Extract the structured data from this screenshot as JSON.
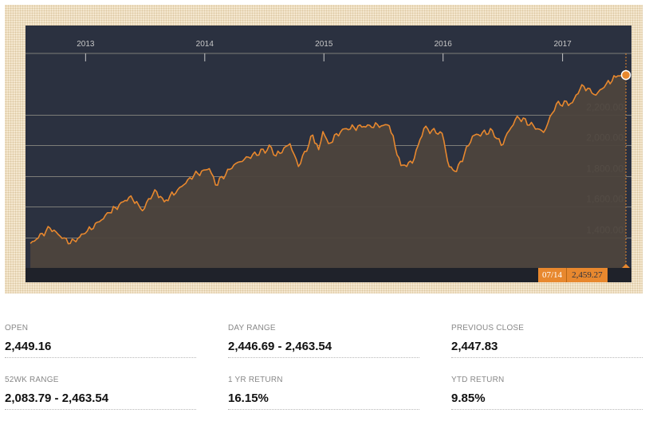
{
  "chart_data": {
    "type": "area",
    "x_ticks": [
      "2013",
      "2014",
      "2015",
      "2016",
      "2017"
    ],
    "y_ticks": [
      "1,400.00",
      "1,600.00",
      "1,800.00",
      "2,000.00",
      "2,200.00"
    ],
    "y_tick_values": [
      1400,
      1600,
      1800,
      2000,
      2200
    ],
    "ylim": [
      1200,
      2600
    ],
    "xlim": [
      "2012-07-01",
      "2017-07-31"
    ],
    "grid": true,
    "x": [
      "2012-07-16",
      "2012-09-14",
      "2012-11-15",
      "2012-12-31",
      "2013-03-15",
      "2013-05-20",
      "2013-06-24",
      "2013-08-01",
      "2013-08-30",
      "2013-10-10",
      "2013-11-29",
      "2014-01-15",
      "2014-02-03",
      "2014-03-31",
      "2014-05-15",
      "2014-07-24",
      "2014-08-07",
      "2014-09-19",
      "2014-10-15",
      "2014-11-28",
      "2014-12-16",
      "2014-12-29",
      "2015-01-15",
      "2015-02-27",
      "2015-05-21",
      "2015-07-20",
      "2015-08-25",
      "2015-09-29",
      "2015-11-03",
      "2015-12-29",
      "2016-01-20",
      "2016-02-11",
      "2016-03-31",
      "2016-05-31",
      "2016-06-27",
      "2016-08-15",
      "2016-11-04",
      "2016-12-13",
      "2017-01-31",
      "2017-03-01",
      "2017-04-13",
      "2017-05-15",
      "2017-06-19",
      "2017-07-14"
    ],
    "values": [
      1360,
      1460,
      1360,
      1426,
      1560,
      1670,
      1573,
      1710,
      1632,
      1710,
      1805,
      1848,
      1742,
      1872,
      1923,
      1987,
      1931,
      2011,
      1862,
      2067,
      1972,
      2090,
      2012,
      2105,
      2131,
      2128,
      1868,
      1884,
      2109,
      2078,
      1860,
      1829,
      2060,
      2096,
      2000,
      2190,
      2085,
      2270,
      2279,
      2396,
      2328,
      2402,
      2453,
      2459
    ],
    "current": {
      "date": "07/14",
      "value": "2,459.27"
    }
  },
  "stats": [
    {
      "label": "OPEN",
      "value": "2,449.16"
    },
    {
      "label": "DAY RANGE",
      "value": "2,446.69 - 2,463.54"
    },
    {
      "label": "PREVIOUS CLOSE",
      "value": "2,447.83"
    },
    {
      "label": "52WK RANGE",
      "value": "2,083.79 - 2,463.54"
    },
    {
      "label": "1 YR RETURN",
      "value": "16.15%"
    },
    {
      "label": "YTD RETURN",
      "value": "9.85%"
    }
  ],
  "colors": {
    "panel": "#2b3140",
    "line": "#e8882e",
    "area": "#4d443d",
    "grid": "#7d7d78",
    "axis_text": "#c7c7c7"
  }
}
